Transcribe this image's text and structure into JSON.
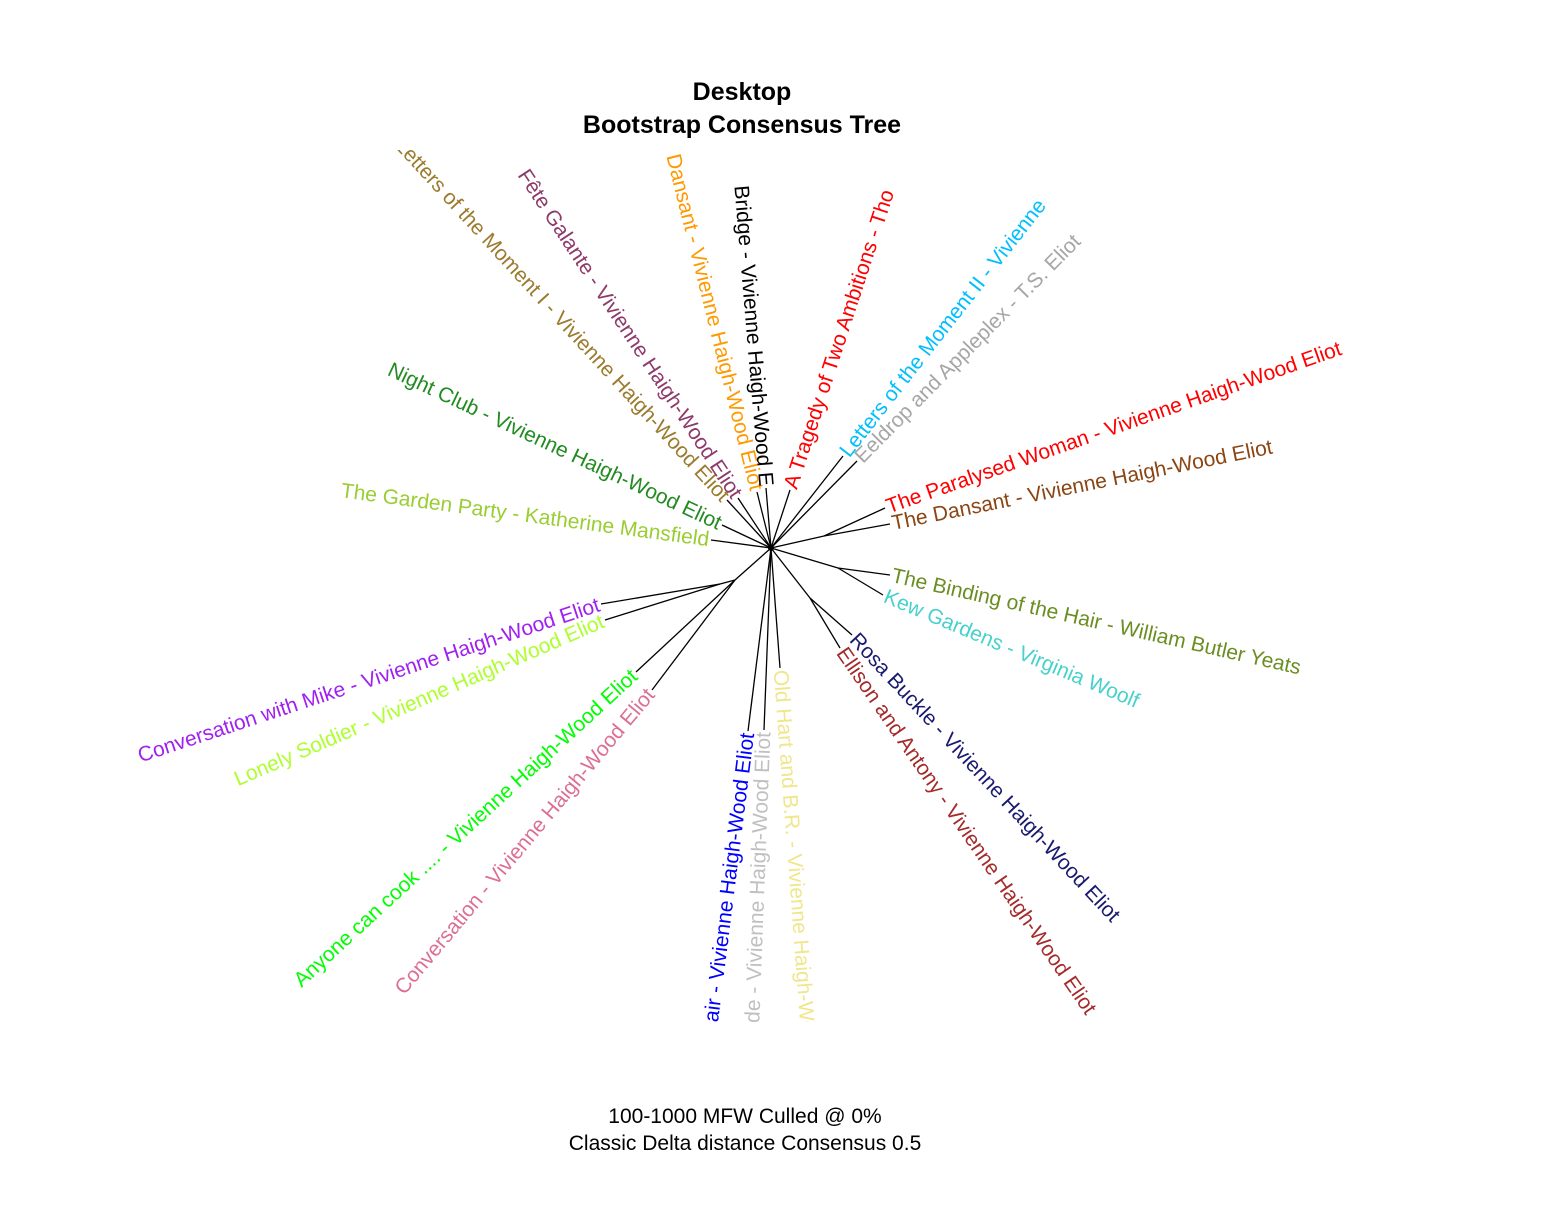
{
  "title": "Desktop",
  "subtitle": "Bootstrap Consensus Tree",
  "caption_line1": "100-1000 MFW  Culled @ 0%",
  "caption_line2": "Classic Delta distance Consensus 0.5",
  "leaves": [
    {
      "label": "Letters of the Moment I - Vivienne Haigh-Wood Eliot",
      "color": "#9b7b2d"
    },
    {
      "label": "Fête Galante - Vivienne Haigh-Wood Eliot",
      "color": "#8e3a6a"
    },
    {
      "label": "Thé Dansant - Vivienne Haigh-Wood Eliot",
      "color": "#ff9900"
    },
    {
      "label": "Bridge - Vivienne Haigh-Wood E",
      "color": "#000000"
    },
    {
      "label": "A Tragedy of Two Ambitions - Tho",
      "color": "#ff0000"
    },
    {
      "label": "Letters of the Moment II - Vivienne",
      "color": "#00bfff"
    },
    {
      "label": "Eeldrop and Appleplex - T.S. Eliot",
      "color": "#a6a6a6"
    },
    {
      "label": "The Paralysed Woman - Vivienne Haigh-Wood Eliot",
      "color": "#ff0000"
    },
    {
      "label": "The Dansant - Vivienne Haigh-Wood Eliot",
      "color": "#8b4513"
    },
    {
      "label": "The Binding of the Hair - William Butler Yeats",
      "color": "#6b8e23"
    },
    {
      "label": "Kew Gardens - Virginia Woolf",
      "color": "#48d1cc"
    },
    {
      "label": "Rosa Buckle - Vivienne Haigh-Wood Eliot",
      "color": "#191970"
    },
    {
      "label": "Ellison and Antony - Vivienne Haigh-Wood Eliot",
      "color": "#a52a2a"
    },
    {
      "label": "Old Hart and B.R. - Vivienne Haigh-Wood Eliot",
      "color": "#f0e68c"
    },
    {
      "label": "Medicine à la Mode - Vivienne Haigh-Wood Eliot",
      "color": "#c0c0c0"
    },
    {
      "label": "Hair - Vivienne Haigh-Wood Eliot",
      "color": "#0000ff"
    },
    {
      "label": "Conversation - Vivienne Haigh-Wood Eliot",
      "color": "#db7093"
    },
    {
      "label": "Anyone can cook .... - Vivienne Haigh-Wood Eliot",
      "color": "#00ff00"
    },
    {
      "label": "Lonely Soldier - Vivienne Haigh-Wood Eliot",
      "color": "#adff2f"
    },
    {
      "label": "Conversation with Mike - Vivienne Haigh-Wood Eliot",
      "color": "#a020f0"
    },
    {
      "label": "The Garden Party - Katherine Mansfield",
      "color": "#9acd32"
    },
    {
      "label": "Night Club - Vivienne Haigh-Wood Eliot",
      "color": "#228b22"
    }
  ]
}
